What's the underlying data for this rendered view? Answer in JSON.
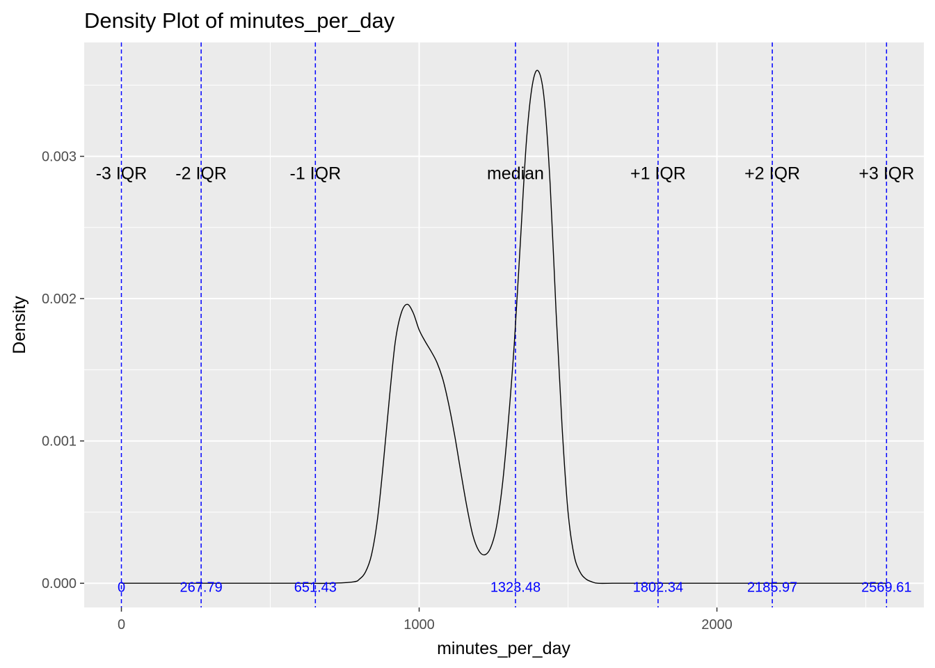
{
  "chart_data": {
    "type": "line",
    "title": "Density Plot of minutes_per_day",
    "xlabel": "minutes_per_day",
    "ylabel": "Density",
    "xlim": [
      -125,
      2695
    ],
    "ylim": [
      -0.00017,
      0.0038
    ],
    "x_ticks": [
      0,
      1000,
      2000
    ],
    "x_tick_labels": [
      "0",
      "1000",
      "2000"
    ],
    "y_ticks": [
      0,
      0.001,
      0.002,
      0.003
    ],
    "y_tick_labels": [
      "0.000",
      "0.001",
      "0.002",
      "0.003"
    ],
    "grid": true,
    "legend": "none",
    "line_color": "#000000",
    "ref_line_color": "#0000ff",
    "panel_color": "#ebebeb",
    "series": [
      {
        "x": [
          0,
          200,
          400,
          600,
          700,
          780,
          800,
          820,
          840,
          860,
          880,
          900,
          920,
          940,
          960,
          980,
          1000,
          1020,
          1040,
          1060,
          1080,
          1100,
          1120,
          1140,
          1160,
          1180,
          1200,
          1220,
          1240,
          1260,
          1280,
          1300,
          1320,
          1340,
          1360,
          1380,
          1400,
          1420,
          1440,
          1460,
          1480,
          1500,
          1520,
          1540,
          1560,
          1580,
          1600,
          1650,
          1700,
          2000,
          2300,
          2569.61
        ],
        "y": [
          0,
          0,
          0,
          0,
          0,
          1e-05,
          3e-05,
          8e-05,
          0.0002,
          0.00045,
          0.00085,
          0.0013,
          0.0017,
          0.0019,
          0.00196,
          0.0019,
          0.00178,
          0.0017,
          0.00163,
          0.00155,
          0.00143,
          0.00125,
          0.00103,
          0.00078,
          0.00054,
          0.00034,
          0.00023,
          0.0002,
          0.00025,
          0.0004,
          0.0007,
          0.00115,
          0.0017,
          0.0024,
          0.0031,
          0.0035,
          0.0036,
          0.0034,
          0.0028,
          0.0019,
          0.0011,
          0.0005,
          0.0002,
          8e-05,
          3e-05,
          1e-05,
          0,
          0,
          0,
          0,
          0,
          0
        ]
      }
    ],
    "reference_lines": [
      {
        "label": "-3 IQR",
        "x": 0,
        "value_label": "0"
      },
      {
        "label": "-2 IQR",
        "x": 267.79,
        "value_label": "267.79"
      },
      {
        "label": "-1 IQR",
        "x": 651.43,
        "value_label": "651.43"
      },
      {
        "label": "median",
        "x": 1323.48,
        "value_label": "1323.48"
      },
      {
        "label": "+1 IQR",
        "x": 1802.34,
        "value_label": "1802.34"
      },
      {
        "label": "+2 IQR",
        "x": 2185.97,
        "value_label": "2185.97"
      },
      {
        "label": "+3 IQR",
        "x": 2569.61,
        "value_label": "2569.61"
      }
    ],
    "ref_label_y": 0.00284,
    "ref_value_y": -6e-05
  }
}
